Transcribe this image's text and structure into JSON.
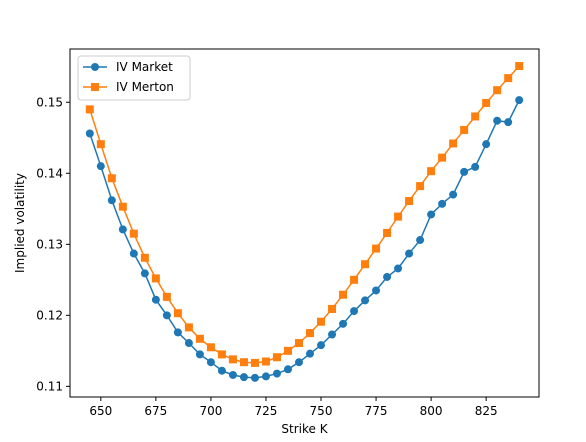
{
  "chart_data": {
    "type": "line",
    "title": "",
    "xlabel": "Strike K",
    "ylabel": "Implied volatility",
    "xlim": [
      636,
      849
    ],
    "ylim": [
      0.1085,
      0.1575
    ],
    "xticks": [
      650,
      675,
      700,
      725,
      750,
      775,
      800,
      825
    ],
    "yticks": [
      0.11,
      0.12,
      0.13,
      0.14,
      0.15
    ],
    "ytick_labels": [
      "0.11",
      "0.12",
      "0.13",
      "0.14",
      "0.15"
    ],
    "grid": false,
    "legend": "top-left",
    "x": [
      645,
      650,
      655,
      660,
      665,
      670,
      675,
      680,
      685,
      690,
      695,
      700,
      705,
      710,
      715,
      720,
      725,
      730,
      735,
      740,
      745,
      750,
      755,
      760,
      765,
      770,
      775,
      780,
      785,
      790,
      795,
      800,
      805,
      810,
      815,
      820,
      825,
      830,
      835,
      840
    ],
    "series": [
      {
        "name": "IV Market",
        "color": "#1f77b4",
        "marker": "circle",
        "values": [
          0.1456,
          0.141,
          0.1362,
          0.1321,
          0.1287,
          0.1259,
          0.1222,
          0.12,
          0.1176,
          0.1161,
          0.1145,
          0.1134,
          0.1122,
          0.1116,
          0.1113,
          0.1112,
          0.1114,
          0.1118,
          0.1124,
          0.1134,
          0.1146,
          0.1158,
          0.1173,
          0.1188,
          0.1206,
          0.1221,
          0.1235,
          0.1254,
          0.1266,
          0.1287,
          0.1306,
          0.1342,
          0.1357,
          0.137,
          0.1402,
          0.1409,
          0.1441,
          0.1474,
          0.1472,
          0.1503
        ]
      },
      {
        "name": "IV Merton",
        "color": "#ff7f0e",
        "marker": "square",
        "values": [
          0.149,
          0.1441,
          0.1393,
          0.1353,
          0.1315,
          0.1281,
          0.1252,
          0.1226,
          0.1203,
          0.1183,
          0.1167,
          0.1155,
          0.1145,
          0.1138,
          0.1134,
          0.1133,
          0.1135,
          0.1141,
          0.115,
          0.1161,
          0.1175,
          0.1191,
          0.1209,
          0.1229,
          0.125,
          0.1272,
          0.1294,
          0.1316,
          0.1339,
          0.1361,
          0.1382,
          0.1403,
          0.1422,
          0.1442,
          0.1461,
          0.148,
          0.1499,
          0.1517,
          0.1534,
          0.1551
        ]
      }
    ]
  }
}
